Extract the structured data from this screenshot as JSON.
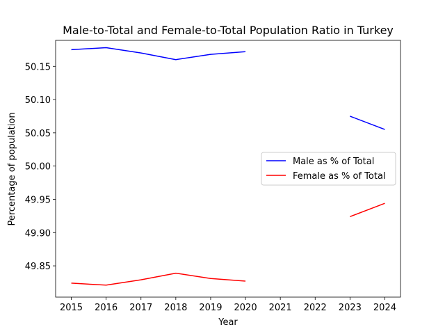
{
  "chart_data": {
    "type": "line",
    "title": "Male-to-Total and Female-to-Total Population Ratio in Turkey",
    "xlabel": "Year",
    "ylabel": "Percentage of population",
    "x_ticks": [
      "2015",
      "2016",
      "2017",
      "2018",
      "2019",
      "2020",
      "2021",
      "2022",
      "2023",
      "2024"
    ],
    "y_ticks": [
      "49.85",
      "49.90",
      "49.95",
      "50.00",
      "50.05",
      "50.10",
      "50.15"
    ],
    "xlim": [
      2014.55,
      2024.45
    ],
    "ylim": [
      49.803,
      50.189
    ],
    "grid": false,
    "legend_position": "center-right",
    "series": [
      {
        "name": "Male as % of Total",
        "color": "#0000ff",
        "x": [
          2015,
          2016,
          2017,
          2018,
          2019,
          2020,
          2021,
          2022,
          2023,
          2024
        ],
        "y": [
          50.175,
          50.178,
          50.17,
          50.16,
          50.168,
          50.172,
          null,
          null,
          50.075,
          50.055
        ]
      },
      {
        "name": "Female as % of Total",
        "color": "#ff0000",
        "x": [
          2015,
          2016,
          2017,
          2018,
          2019,
          2020,
          2021,
          2022,
          2023,
          2024
        ],
        "y": [
          49.824,
          49.821,
          49.829,
          49.839,
          49.831,
          49.827,
          null,
          null,
          49.924,
          49.944
        ]
      }
    ]
  }
}
